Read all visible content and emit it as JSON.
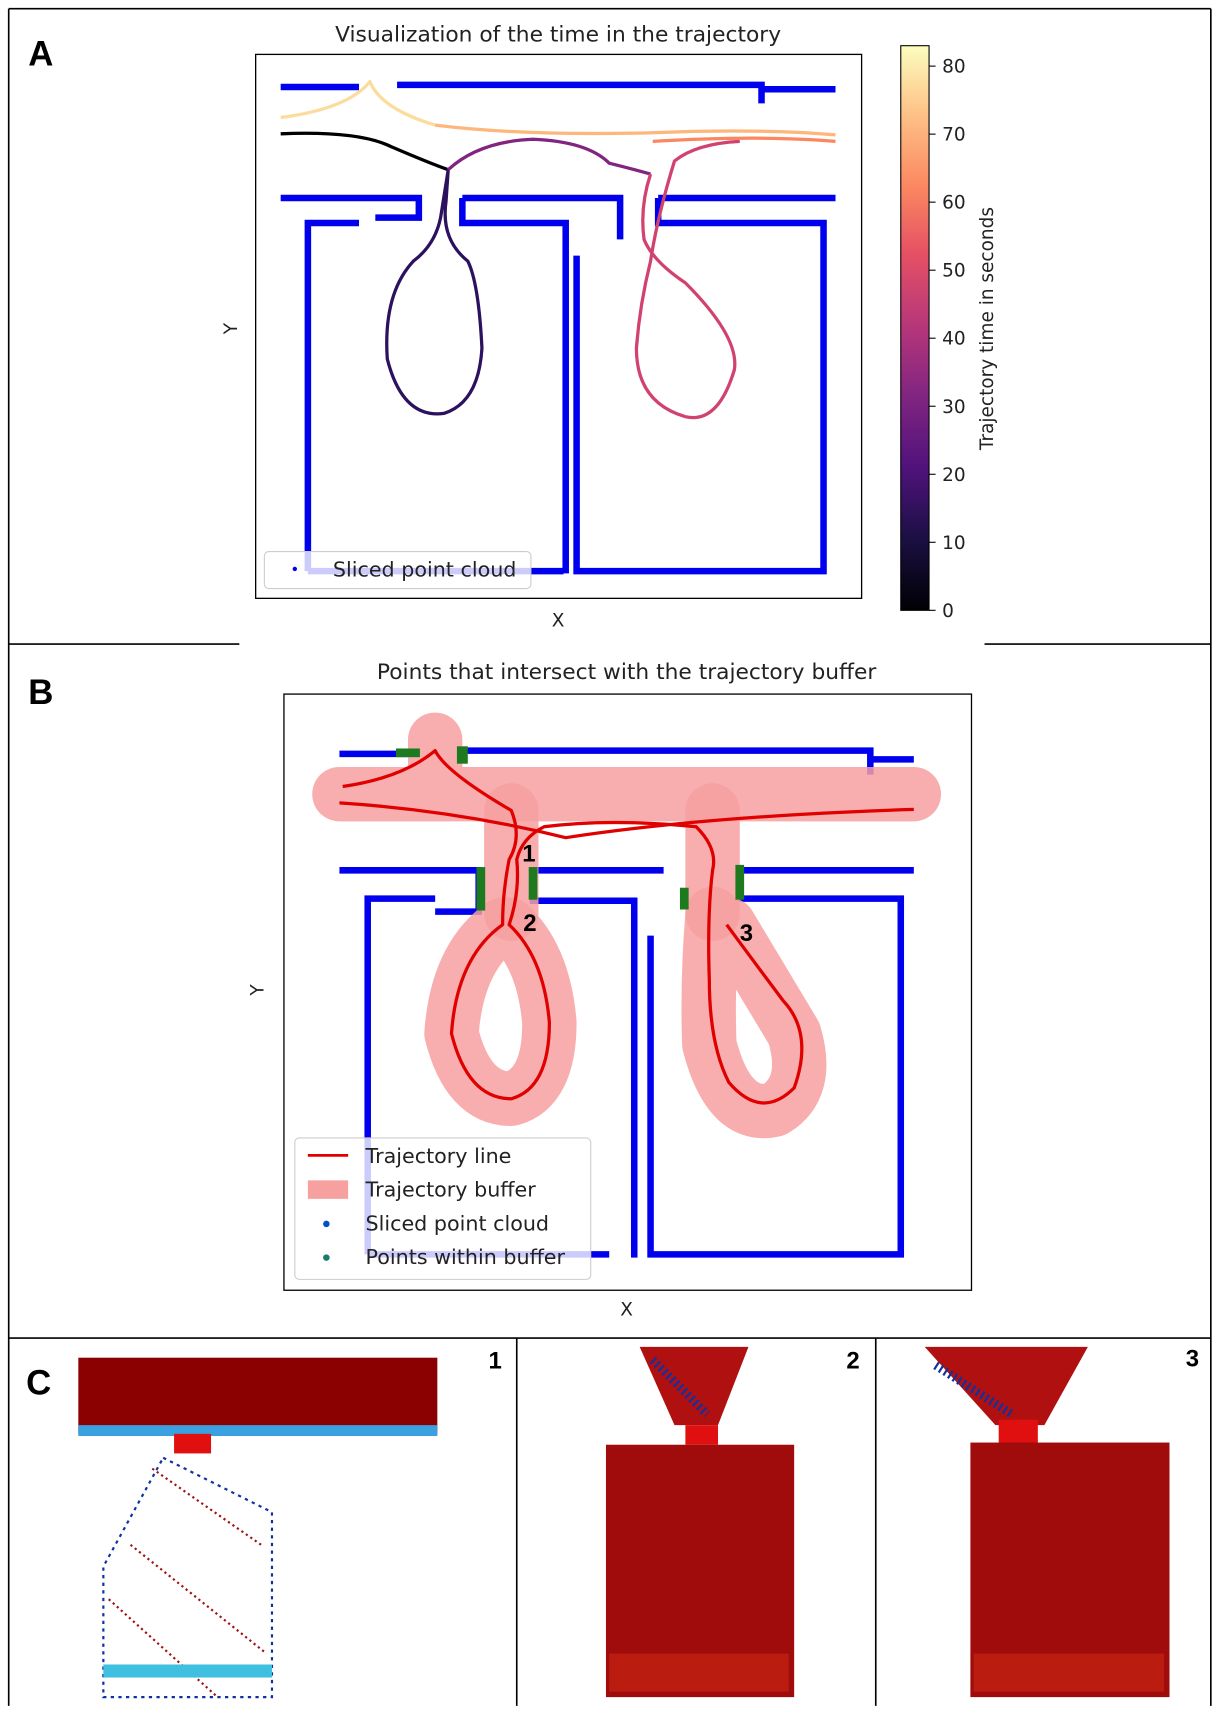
{
  "panels": [
    {
      "label": "A",
      "title": "Visualization of the time in the trajectory",
      "xlabel": "X",
      "ylabel": "Y",
      "legend": [
        "Sliced point cloud"
      ],
      "colorbar": {
        "label": "Trajectory time in seconds",
        "lim": [
          0,
          83
        ],
        "ticks": [
          0,
          10,
          20,
          30,
          40,
          50,
          60,
          70,
          80
        ]
      }
    },
    {
      "label": "B",
      "title": "Points that intersect with the trajectory buffer",
      "xlabel": "X",
      "ylabel": "Y",
      "legend": [
        "Trajectory line",
        "Trajectory buffer",
        "Sliced point cloud",
        "Points within buffer"
      ],
      "annotations": [
        "1",
        "2",
        "3"
      ]
    },
    {
      "label": "C",
      "views": [
        "1",
        "2",
        "3"
      ]
    }
  ]
}
